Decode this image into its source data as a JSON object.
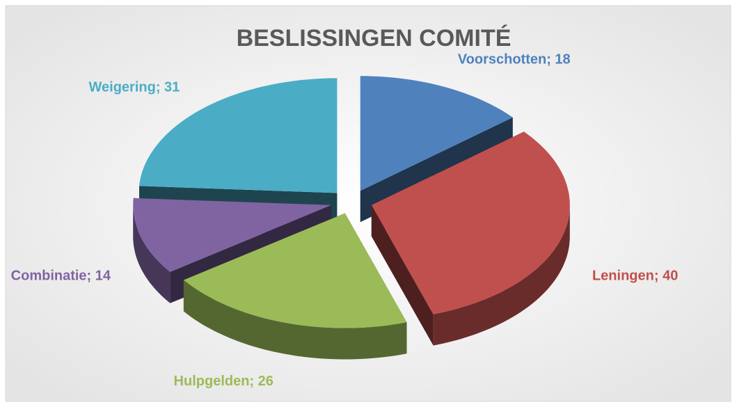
{
  "chart_data": {
    "type": "pie3d",
    "title": "BESLISSINGEN COMITÉ",
    "categories": [
      "Voorschotten",
      "Leningen",
      "Hulpgelden",
      "Combinatie",
      "Weigering"
    ],
    "values": [
      18,
      40,
      26,
      14,
      31
    ],
    "value_labels": [
      "Voorschotten; 18",
      "Leningen; 40",
      "Hulpgelden; 26",
      "Combinatie; 14",
      "Weigering; 31"
    ],
    "colors": [
      "#4f81bd",
      "#c0504d",
      "#9bbb59",
      "#8064a2",
      "#4bacc6"
    ]
  }
}
